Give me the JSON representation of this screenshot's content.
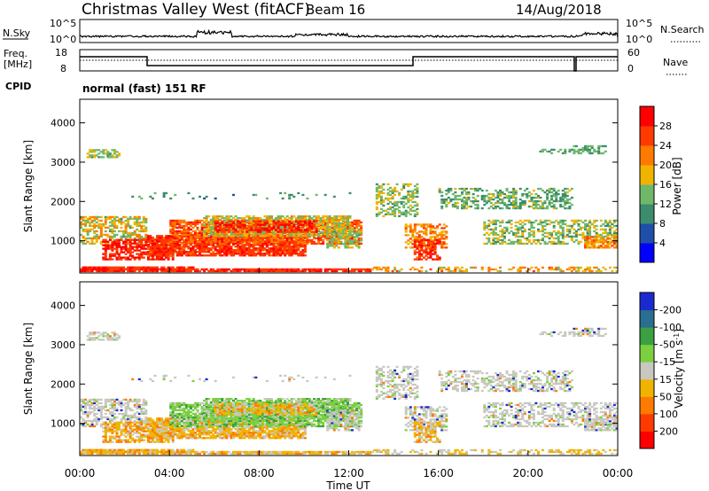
{
  "header": {
    "site": "Christmas Valley West (fitACF)",
    "beam": "Beam 16",
    "date": "14/Aug/2018"
  },
  "panels": {
    "nsky_label": "N.Sky",
    "nsky_tick_hi": "10^5",
    "nsky_tick_lo": "10^0",
    "nsearch_label": "N.Search",
    "nsearch_tick_hi": "10^5",
    "nsearch_tick_lo": "10^0",
    "freq_label": "Freq.",
    "freq_unit": "[MHz]",
    "freq_tick_hi": "18",
    "freq_tick_lo": "8",
    "nave_label": "Nave",
    "nave_tick_hi": "60",
    "nave_tick_lo": "0",
    "cpid_label": "CPID",
    "cpid_value": "normal (fast) 151 RF"
  },
  "chart_data": [
    {
      "type": "heatmap",
      "name": "power",
      "ylabel": "Slant Range [km]",
      "xlabel": "Time UT",
      "x_ticks": [
        "00:00",
        "04:00",
        "08:00",
        "12:00",
        "16:00",
        "20:00",
        "00:00"
      ],
      "x_range_hours": [
        0,
        24
      ],
      "y_ticks": [
        1000,
        2000,
        3000,
        4000
      ],
      "ylim": [
        180,
        4600
      ],
      "colorbar_label": "Power [dB]",
      "colorbar_ticks": [
        4,
        8,
        12,
        16,
        20,
        24,
        28
      ],
      "colorbar_range": [
        0,
        30
      ],
      "colors": [
        "#0000ff",
        "#1f4fa8",
        "#3c8c6e",
        "#6fb86a",
        "#f0b400",
        "#ff7a00",
        "#ff3a00",
        "#ff0000"
      ]
    },
    {
      "type": "heatmap",
      "name": "velocity",
      "ylabel": "Slant Range [km]",
      "xlabel": "Time UT",
      "x_ticks": [
        "00:00",
        "04:00",
        "08:00",
        "12:00",
        "16:00",
        "20:00",
        "00:00"
      ],
      "x_range_hours": [
        0,
        24
      ],
      "y_ticks": [
        1000,
        2000,
        3000,
        4000
      ],
      "ylim": [
        180,
        4600
      ],
      "colorbar_label": "Velocity [m s^-1]",
      "colorbar_ticks": [
        "200",
        "100",
        "50",
        "15",
        "-15",
        "-50",
        "-100",
        "-200"
      ],
      "colors": [
        "#1a2ad0",
        "#2a6e90",
        "#3aa040",
        "#7ad040",
        "#c8c8c0",
        "#f0b400",
        "#ff7a00",
        "#ff3a00",
        "#ff0000"
      ]
    }
  ],
  "time_axis_label": "Time UT"
}
